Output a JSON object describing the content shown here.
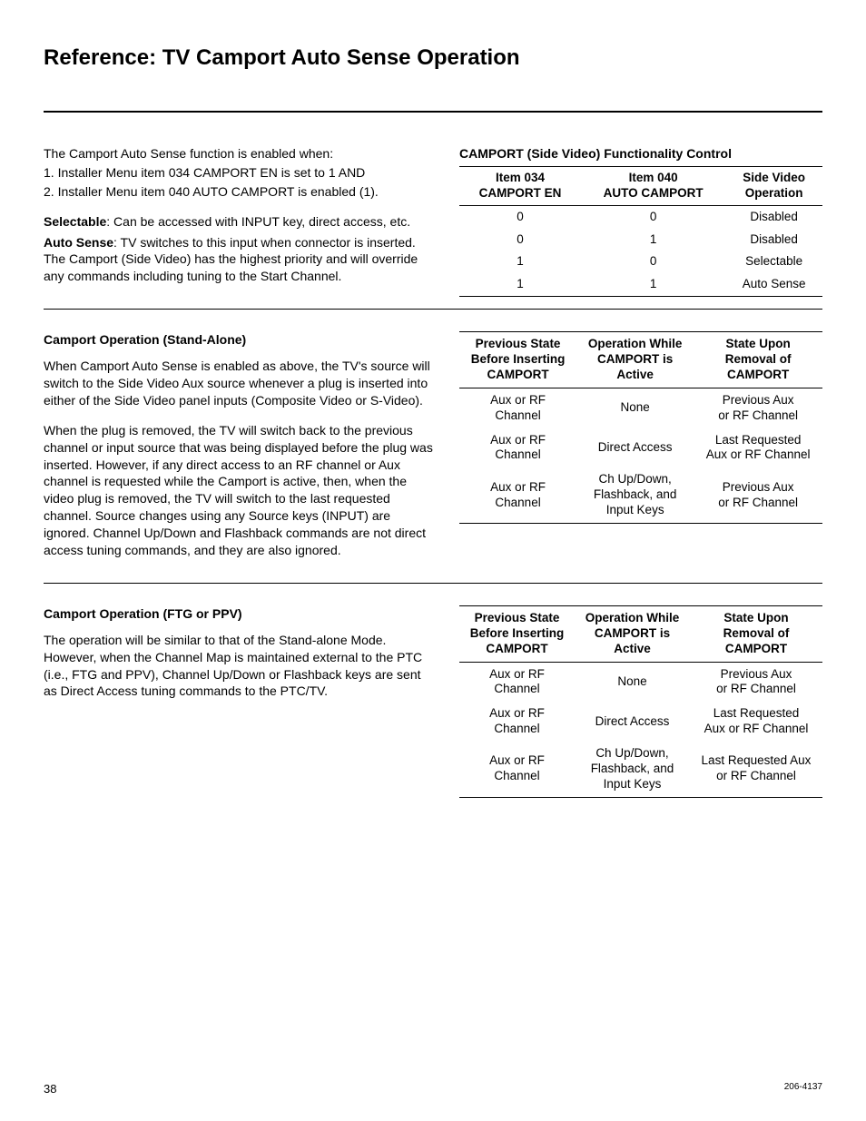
{
  "title": "Reference: TV Camport Auto Sense Operation",
  "intro": {
    "lead": "The Camport Auto Sense function is enabled when:",
    "item1": "1. Installer Menu item 034 CAMPORT EN is set to 1 AND",
    "item2": "2. Installer Menu item 040 AUTO CAMPORT is enabled (1).",
    "selectable_label": "Selectable",
    "selectable_text": ": Can be accessed with INPUT key, direct access, etc.",
    "autosense_label": "Auto Sense",
    "autosense_text": ": TV switches to this input when connector is inserted. The Camport (Side Video) has the highest priority and will override any commands including tuning to the Start Channel."
  },
  "table1": {
    "caption": "CAMPORT (Side Video) Functionality Control",
    "h1a": "Item 034",
    "h1b": "CAMPORT EN",
    "h2a": "Item 040",
    "h2b": "AUTO CAMPORT",
    "h3a": "Side Video",
    "h3b": "Operation",
    "rows": [
      {
        "c1": "0",
        "c2": "0",
        "c3": "Disabled"
      },
      {
        "c1": "0",
        "c2": "1",
        "c3": "Disabled"
      },
      {
        "c1": "1",
        "c2": "0",
        "c3": "Selectable"
      },
      {
        "c1": "1",
        "c2": "1",
        "c3": "Auto Sense"
      }
    ]
  },
  "standalone": {
    "heading": "Camport Operation (Stand-Alone)",
    "p1": "When Camport Auto Sense is enabled as above, the TV's source will switch to the Side Video Aux source whenever a plug is inserted into either of the Side Video panel inputs (Composite Video or S-Video).",
    "p2": "When the plug is removed, the TV will switch back to the previous channel or input source that was being displayed before the plug was inserted. However, if any direct access to an RF channel or Aux channel is requested while the Camport is active, then, when the video plug is removed, the TV will switch to the last requested channel. Source changes using any Source keys (INPUT) are ignored. Channel Up/Down and Flashback commands are not direct access tuning commands, and they are also ignored."
  },
  "table2": {
    "h1a": "Previous State",
    "h1b": "Before Inserting",
    "h1c": "CAMPORT",
    "h2a": "Operation While",
    "h2b": "CAMPORT is",
    "h2c": "Active",
    "h3a": "State Upon",
    "h3b": "Removal of",
    "h3c": "CAMPORT",
    "rows": [
      {
        "c1": "Aux or RF\nChannel",
        "c2": "None",
        "c3": "Previous Aux\nor RF Channel"
      },
      {
        "c1": "Aux or RF\nChannel",
        "c2": "Direct Access",
        "c3": "Last Requested\nAux or RF Channel"
      },
      {
        "c1": "Aux or RF\nChannel",
        "c2": "Ch Up/Down,\nFlashback, and\nInput Keys",
        "c3": "Previous Aux\nor RF Channel"
      }
    ]
  },
  "ftg": {
    "heading": "Camport Operation (FTG or PPV)",
    "p1": "The operation will be similar to that of the Stand-alone Mode. However, when the Channel Map is maintained external to the PTC (i.e., FTG and PPV), Channel Up/Down or Flashback keys are sent as Direct Access tuning commands to the PTC/TV."
  },
  "table3": {
    "h1a": "Previous State",
    "h1b": "Before Inserting",
    "h1c": "CAMPORT",
    "h2a": "Operation While",
    "h2b": "CAMPORT is",
    "h2c": "Active",
    "h3a": "State Upon",
    "h3b": "Removal of",
    "h3c": "CAMPORT",
    "rows": [
      {
        "c1": "Aux or RF\nChannel",
        "c2": "None",
        "c3": "Previous Aux\nor RF Channel"
      },
      {
        "c1": "Aux or RF\nChannel",
        "c2": "Direct Access",
        "c3": "Last Requested\nAux or RF Channel"
      },
      {
        "c1": "Aux or RF\nChannel",
        "c2": "Ch Up/Down,\nFlashback, and\nInput Keys",
        "c3": "Last Requested Aux\nor RF Channel"
      }
    ]
  },
  "footer": {
    "page": "38",
    "doc": "206-4137"
  }
}
